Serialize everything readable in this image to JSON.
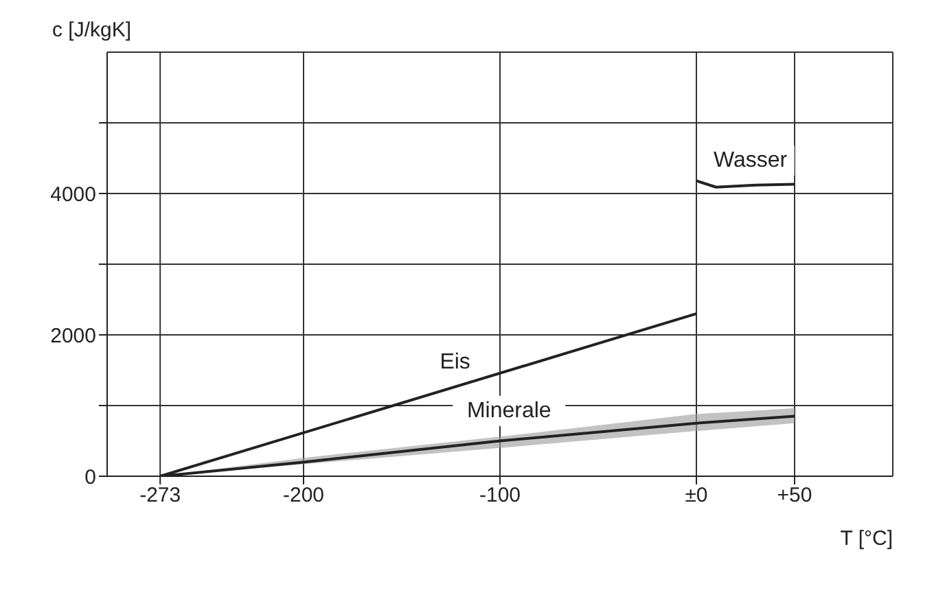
{
  "chart_data": {
    "type": "line",
    "xlabel": "T [°C]",
    "ylabel": "c [J/kgK]",
    "xlim": [
      -300,
      100
    ],
    "ylim": [
      0,
      6000
    ],
    "xticks": [
      -273,
      -200,
      -100,
      {
        "value": 0,
        "label": "±0"
      },
      {
        "value": 50,
        "label": "+50"
      }
    ],
    "yticks": [
      0,
      {
        "value": 1000,
        "label": null
      },
      2000,
      {
        "value": 3000,
        "label": null
      },
      4000,
      {
        "value": 5000,
        "label": null
      }
    ],
    "grid": true,
    "legend": false,
    "marker": "none",
    "series": [
      {
        "name": "Eis",
        "color": "#222222",
        "x": [
          -273,
          0
        ],
        "values": [
          0,
          2300
        ]
      },
      {
        "name": "Minerale",
        "color": "#222222",
        "x": [
          -273,
          -200,
          -100,
          0,
          50
        ],
        "values": [
          0,
          200,
          500,
          750,
          850
        ],
        "lower": [
          0,
          170,
          400,
          640,
          750
        ],
        "upper": [
          0,
          260,
          560,
          880,
          960
        ]
      },
      {
        "name": "Wasser",
        "color": "#222222",
        "x": [
          0,
          10,
          30,
          50
        ],
        "values": [
          4180,
          4090,
          4120,
          4130
        ]
      }
    ]
  }
}
